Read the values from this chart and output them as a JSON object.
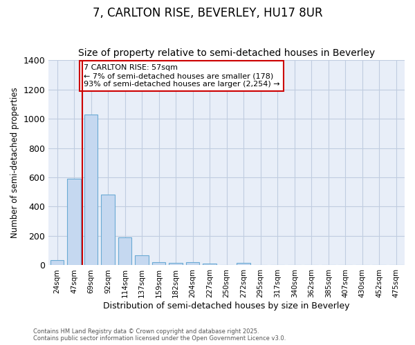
{
  "title": "7, CARLTON RISE, BEVERLEY, HU17 8UR",
  "subtitle": "Size of property relative to semi-detached houses in Beverley",
  "xlabel": "Distribution of semi-detached houses by size in Beverley",
  "ylabel": "Number of semi-detached properties",
  "categories": [
    "24sqm",
    "47sqm",
    "69sqm",
    "92sqm",
    "114sqm",
    "137sqm",
    "159sqm",
    "182sqm",
    "204sqm",
    "227sqm",
    "250sqm",
    "272sqm",
    "295sqm",
    "317sqm",
    "340sqm",
    "362sqm",
    "385sqm",
    "407sqm",
    "430sqm",
    "452sqm",
    "475sqm"
  ],
  "values": [
    35,
    590,
    1030,
    480,
    190,
    70,
    20,
    15,
    20,
    10,
    0,
    15,
    0,
    0,
    0,
    0,
    0,
    0,
    0,
    0,
    0
  ],
  "bar_color": "#c5d8f0",
  "bar_edge_color": "#6aaad4",
  "property_line_x": 1.5,
  "property_line_label": "7 CARLTON RISE: 57sqm",
  "annotation_line1": "← 7% of semi-detached houses are smaller (178)",
  "annotation_line2": "93% of semi-detached houses are larger (2,254) →",
  "red_line_color": "#cc0000",
  "ylim": [
    0,
    1400
  ],
  "yticks": [
    0,
    200,
    400,
    600,
    800,
    1000,
    1200,
    1400
  ],
  "footnote1": "Contains HM Land Registry data © Crown copyright and database right 2025.",
  "footnote2": "Contains public sector information licensed under the Open Government Licence v3.0.",
  "plot_bg_color": "#e8eef8",
  "fig_bg_color": "#ffffff",
  "grid_color": "#c0cce0",
  "title_fontsize": 12,
  "subtitle_fontsize": 10,
  "annotation_box_color": "#ffffff",
  "annotation_box_edge": "#cc0000",
  "bar_width": 0.8
}
